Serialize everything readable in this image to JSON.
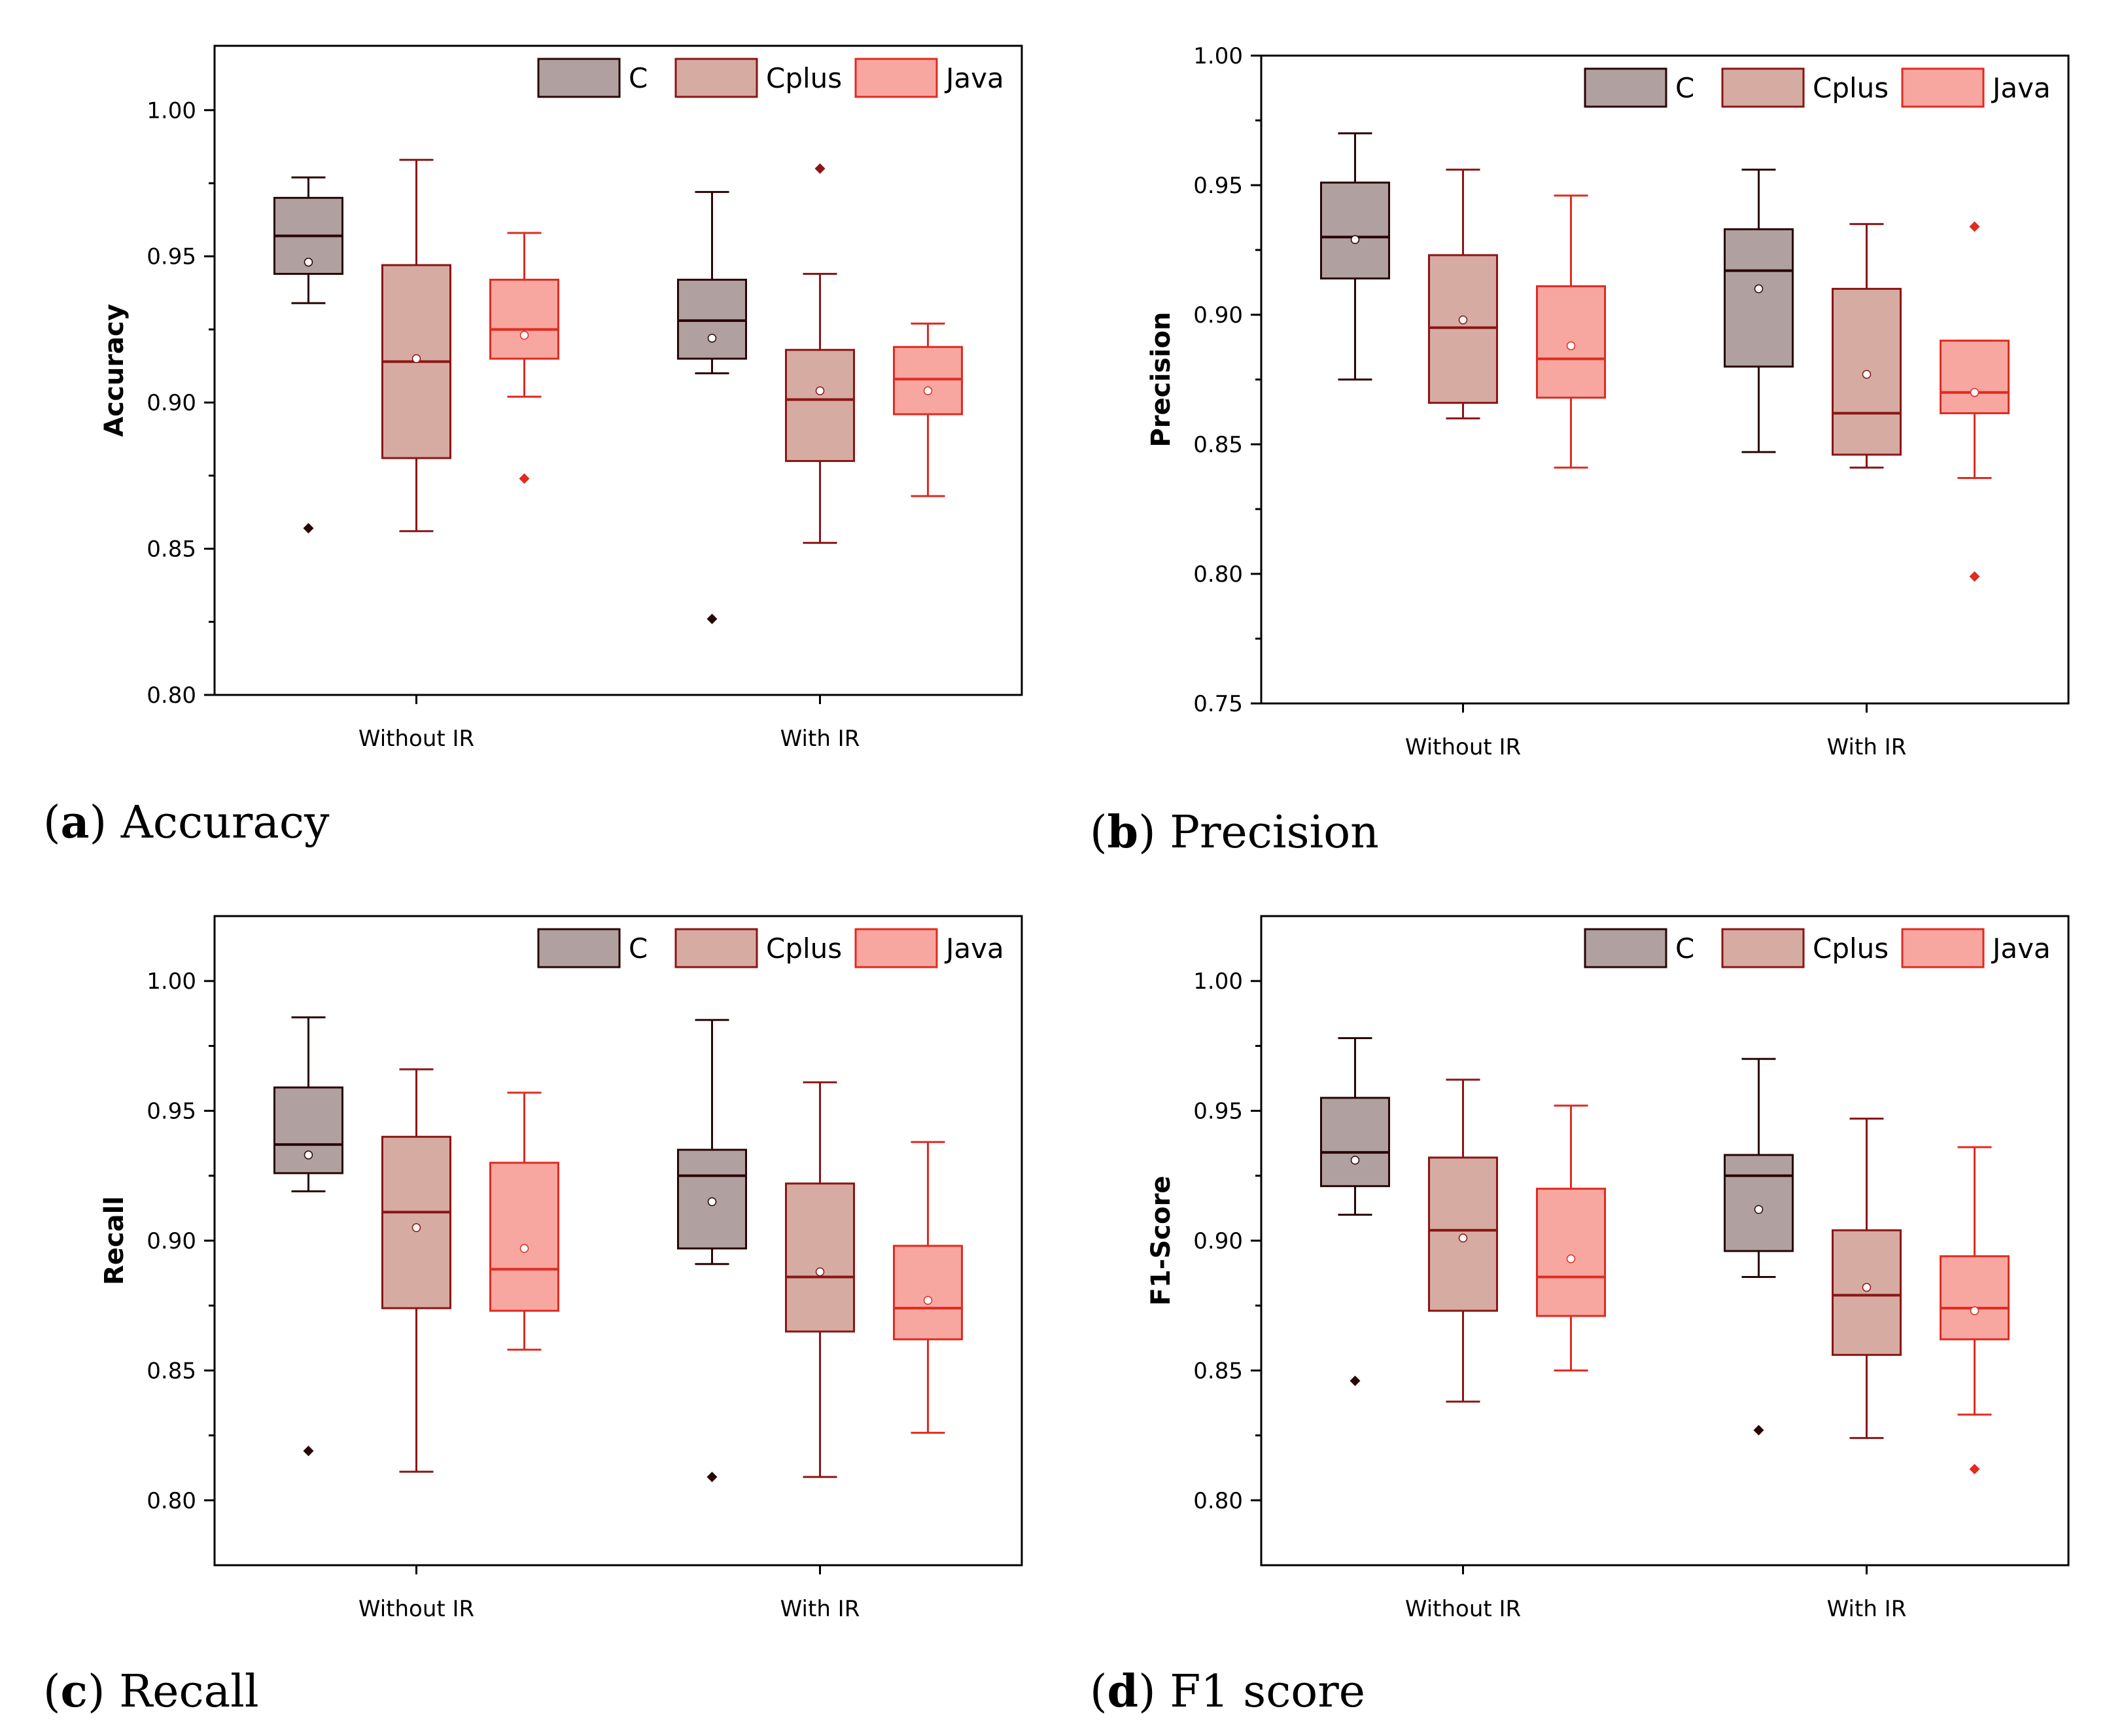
{
  "chart_data": [
    {
      "type": "box",
      "caption_letter": "a",
      "caption_text": "Accuracy",
      "ylabel": "Accuracy",
      "ylim": [
        0.8,
        1.022
      ],
      "yticks": [
        "0.80",
        "0.85",
        "0.90",
        "0.95",
        "1.00"
      ],
      "categories": [
        "Without IR",
        "With IR"
      ],
      "series": [
        {
          "name": "C",
          "boxes": [
            {
              "min": 0.934,
              "q1": 0.944,
              "median": 0.957,
              "q3": 0.97,
              "max": 0.977,
              "mean": 0.948,
              "outliers": [
                0.857
              ]
            },
            {
              "min": 0.91,
              "q1": 0.915,
              "median": 0.928,
              "q3": 0.942,
              "max": 0.972,
              "mean": 0.922,
              "outliers": [
                0.826
              ]
            }
          ]
        },
        {
          "name": "Cplus",
          "boxes": [
            {
              "min": 0.856,
              "q1": 0.881,
              "median": 0.914,
              "q3": 0.947,
              "max": 0.983,
              "mean": 0.915,
              "outliers": []
            },
            {
              "min": 0.852,
              "q1": 0.88,
              "median": 0.901,
              "q3": 0.918,
              "max": 0.944,
              "mean": 0.904,
              "outliers": [
                0.98
              ]
            }
          ]
        },
        {
          "name": "Java",
          "boxes": [
            {
              "min": 0.902,
              "q1": 0.915,
              "median": 0.925,
              "q3": 0.942,
              "max": 0.958,
              "mean": 0.923,
              "outliers": [
                0.874
              ]
            },
            {
              "min": 0.868,
              "q1": 0.896,
              "median": 0.908,
              "q3": 0.919,
              "max": 0.927,
              "mean": 0.904,
              "outliers": []
            }
          ]
        }
      ]
    },
    {
      "type": "box",
      "caption_letter": "b",
      "caption_text": "Precision",
      "ylabel": "Precision",
      "ylim": [
        0.75,
        1.0
      ],
      "yticks": [
        "0.75",
        "0.80",
        "0.85",
        "0.90",
        "0.95",
        "1.00"
      ],
      "categories": [
        "Without IR",
        "With IR"
      ],
      "series": [
        {
          "name": "C",
          "boxes": [
            {
              "min": 0.875,
              "q1": 0.914,
              "median": 0.93,
              "q3": 0.951,
              "max": 0.97,
              "mean": 0.929,
              "outliers": []
            },
            {
              "min": 0.847,
              "q1": 0.88,
              "median": 0.917,
              "q3": 0.933,
              "max": 0.956,
              "mean": 0.91,
              "outliers": []
            }
          ]
        },
        {
          "name": "Cplus",
          "boxes": [
            {
              "min": 0.86,
              "q1": 0.866,
              "median": 0.895,
              "q3": 0.923,
              "max": 0.956,
              "mean": 0.898,
              "outliers": []
            },
            {
              "min": 0.841,
              "q1": 0.846,
              "median": 0.862,
              "q3": 0.91,
              "max": 0.935,
              "mean": 0.877,
              "outliers": []
            }
          ]
        },
        {
          "name": "Java",
          "boxes": [
            {
              "min": 0.841,
              "q1": 0.868,
              "median": 0.883,
              "q3": 0.911,
              "max": 0.946,
              "mean": 0.888,
              "outliers": []
            },
            {
              "min": 0.837,
              "q1": 0.862,
              "median": 0.87,
              "q3": 0.89,
              "max": 0.89,
              "mean": 0.87,
              "outliers": [
                0.934,
                0.799
              ]
            }
          ]
        }
      ]
    },
    {
      "type": "box",
      "caption_letter": "c",
      "caption_text": "Recall",
      "ylabel": "Recall",
      "ylim": [
        0.775,
        1.025
      ],
      "yticks": [
        "0.80",
        "0.85",
        "0.90",
        "0.95",
        "1.00"
      ],
      "categories": [
        "Without IR",
        "With IR"
      ],
      "series": [
        {
          "name": "C",
          "boxes": [
            {
              "min": 0.919,
              "q1": 0.926,
              "median": 0.937,
              "q3": 0.959,
              "max": 0.986,
              "mean": 0.933,
              "outliers": [
                0.819
              ]
            },
            {
              "min": 0.891,
              "q1": 0.897,
              "median": 0.925,
              "q3": 0.935,
              "max": 0.985,
              "mean": 0.915,
              "outliers": [
                0.809
              ]
            }
          ]
        },
        {
          "name": "Cplus",
          "boxes": [
            {
              "min": 0.811,
              "q1": 0.874,
              "median": 0.911,
              "q3": 0.94,
              "max": 0.966,
              "mean": 0.905,
              "outliers": []
            },
            {
              "min": 0.809,
              "q1": 0.865,
              "median": 0.886,
              "q3": 0.922,
              "max": 0.961,
              "mean": 0.888,
              "outliers": []
            }
          ]
        },
        {
          "name": "Java",
          "boxes": [
            {
              "min": 0.858,
              "q1": 0.873,
              "median": 0.889,
              "q3": 0.93,
              "max": 0.957,
              "mean": 0.897,
              "outliers": []
            },
            {
              "min": 0.826,
              "q1": 0.862,
              "median": 0.874,
              "q3": 0.898,
              "max": 0.938,
              "mean": 0.877,
              "outliers": []
            }
          ]
        }
      ]
    },
    {
      "type": "box",
      "caption_letter": "d",
      "caption_text": "F1 score",
      "ylabel": "F1-Score",
      "ylim": [
        0.775,
        1.025
      ],
      "yticks": [
        "0.80",
        "0.85",
        "0.90",
        "0.95",
        "1.00"
      ],
      "categories": [
        "Without IR",
        "With IR"
      ],
      "series": [
        {
          "name": "C",
          "boxes": [
            {
              "min": 0.91,
              "q1": 0.921,
              "median": 0.934,
              "q3": 0.955,
              "max": 0.978,
              "mean": 0.931,
              "outliers": [
                0.846
              ]
            },
            {
              "min": 0.886,
              "q1": 0.896,
              "median": 0.925,
              "q3": 0.933,
              "max": 0.97,
              "mean": 0.912,
              "outliers": [
                0.827
              ]
            }
          ]
        },
        {
          "name": "Cplus",
          "boxes": [
            {
              "min": 0.838,
              "q1": 0.873,
              "median": 0.904,
              "q3": 0.932,
              "max": 0.962,
              "mean": 0.901,
              "outliers": []
            },
            {
              "min": 0.824,
              "q1": 0.856,
              "median": 0.879,
              "q3": 0.904,
              "max": 0.947,
              "mean": 0.882,
              "outliers": []
            }
          ]
        },
        {
          "name": "Java",
          "boxes": [
            {
              "min": 0.85,
              "q1": 0.871,
              "median": 0.886,
              "q3": 0.92,
              "max": 0.952,
              "mean": 0.893,
              "outliers": []
            },
            {
              "min": 0.833,
              "q1": 0.862,
              "median": 0.874,
              "q3": 0.894,
              "max": 0.936,
              "mean": 0.873,
              "outliers": [
                0.812
              ]
            }
          ]
        }
      ]
    }
  ],
  "colors": {
    "C": {
      "fill": "#b0a0a0",
      "stroke": "#2a0505"
    },
    "Cplus": {
      "fill": "#d6aba2",
      "stroke": "#8b1515"
    },
    "Java": {
      "fill": "#f7a7a0",
      "stroke": "#e02b20"
    }
  }
}
